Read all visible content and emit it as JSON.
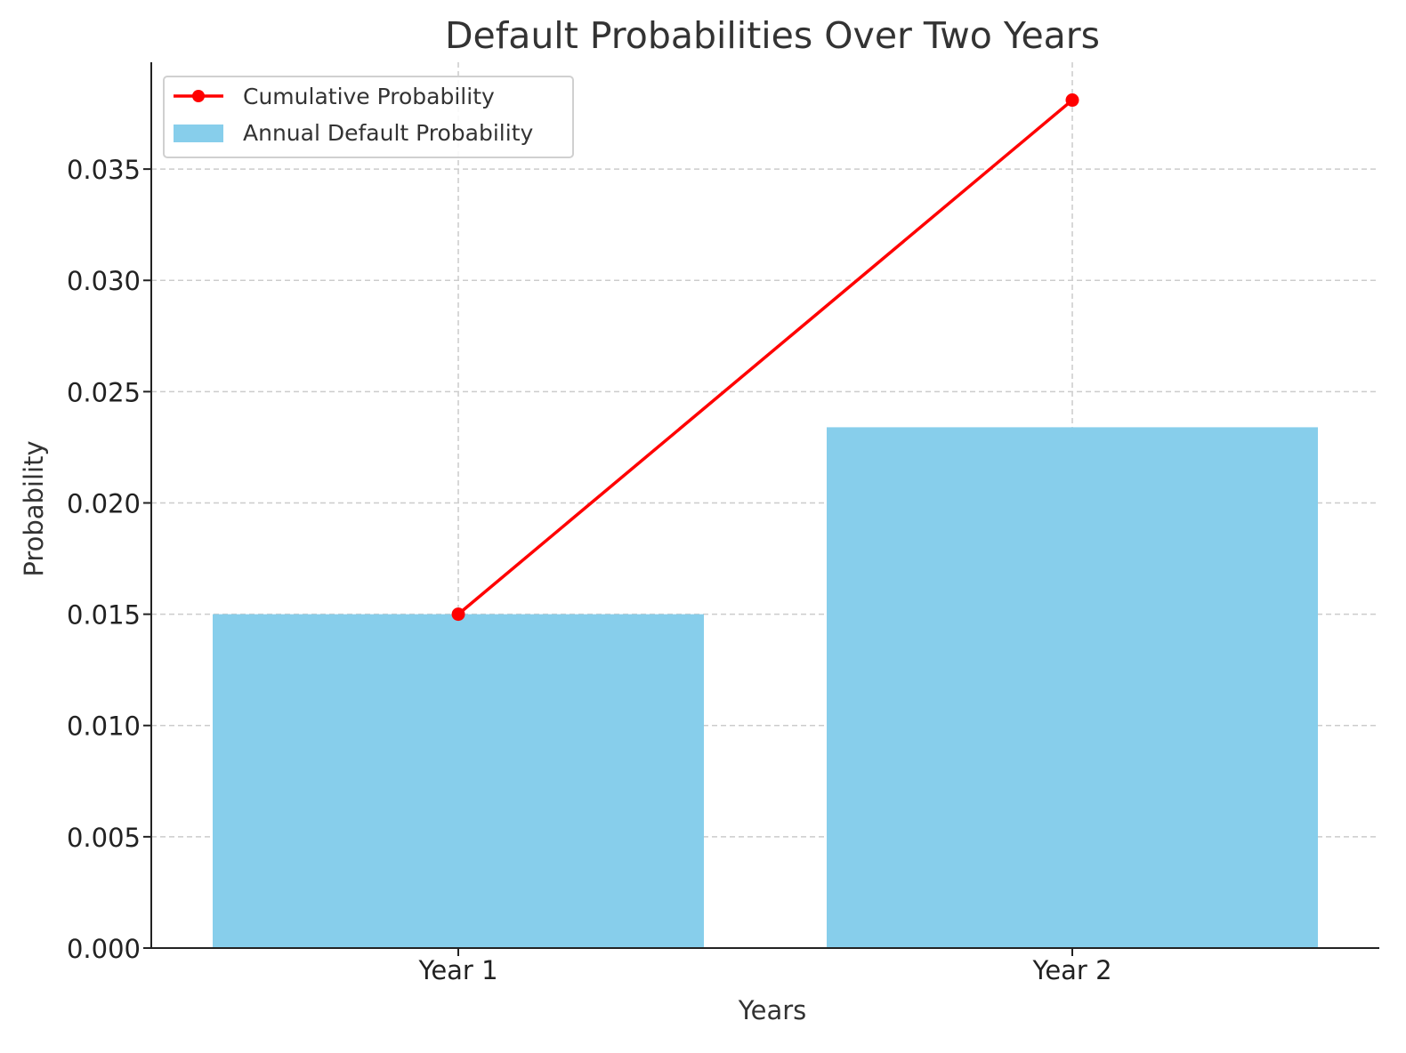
{
  "chart_data": {
    "type": "bar",
    "title": "Default Probabilities Over Two Years",
    "xlabel": "Years",
    "ylabel": "Probability",
    "categories": [
      "Year 1",
      "Year 2"
    ],
    "ylim": [
      0,
      0.0398
    ],
    "yticks": [
      0.0,
      0.005,
      0.01,
      0.015,
      0.02,
      0.025,
      0.03,
      0.035
    ],
    "ytick_labels": [
      "0.000",
      "0.005",
      "0.010",
      "0.015",
      "0.020",
      "0.025",
      "0.030",
      "0.035"
    ],
    "grid": true,
    "legend_position": "top-left",
    "series": [
      {
        "name": "Annual Default Probability",
        "kind": "bar",
        "color": "#87ceeb",
        "values": [
          0.015,
          0.0234
        ]
      },
      {
        "name": "Cumulative Probability",
        "kind": "line",
        "marker": "circle",
        "color": "#ff0000",
        "values": [
          0.015,
          0.0381
        ]
      }
    ],
    "legend_order": [
      "Cumulative Probability",
      "Annual Default Probability"
    ]
  }
}
